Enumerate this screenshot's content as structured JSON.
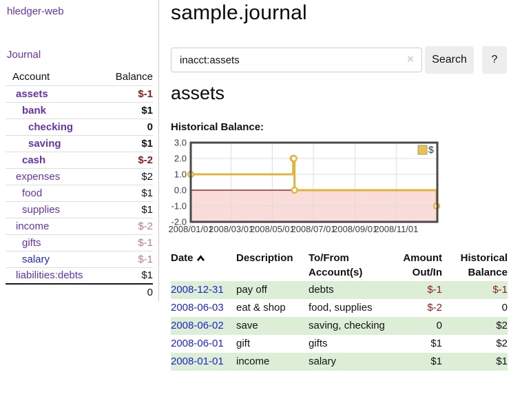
{
  "app": {
    "brand": "hledger-web"
  },
  "nav": {
    "journal": "Journal"
  },
  "sidebar": {
    "header": {
      "account": "Account",
      "balance": "Balance"
    },
    "accounts": [
      {
        "name": "assets",
        "balance": "$-1",
        "depth": 1,
        "bold": true,
        "balance_style": "strong-neg"
      },
      {
        "name": "bank",
        "balance": "$1",
        "depth": 2,
        "bold": true,
        "balance_style": "plain"
      },
      {
        "name": "checking",
        "balance": "0",
        "depth": 3,
        "bold": true,
        "balance_style": "plain"
      },
      {
        "name": "saving",
        "balance": "$1",
        "depth": 3,
        "bold": true,
        "balance_style": "plain"
      },
      {
        "name": "cash",
        "balance": "$-2",
        "depth": 2,
        "bold": true,
        "balance_style": "strong-neg"
      },
      {
        "name": "expenses",
        "balance": "$2",
        "depth": 1,
        "bold": false,
        "balance_style": "plain"
      },
      {
        "name": "food",
        "balance": "$1",
        "depth": 2,
        "bold": false,
        "balance_style": "plain"
      },
      {
        "name": "supplies",
        "balance": "$1",
        "depth": 2,
        "bold": false,
        "balance_style": "plain"
      },
      {
        "name": "income",
        "balance": "$-2",
        "depth": 1,
        "bold": false,
        "balance_style": "soft-neg"
      },
      {
        "name": "gifts",
        "balance": "$-1",
        "depth": 2,
        "bold": false,
        "balance_style": "soft-neg"
      },
      {
        "name": "salary",
        "balance": "$-1",
        "depth": 2,
        "bold": false,
        "balance_style": "soft-neg",
        "link": "blue"
      },
      {
        "name": "liabilities:debts",
        "balance": "$1",
        "depth": 1,
        "bold": false,
        "balance_style": "plain"
      }
    ],
    "total": "0"
  },
  "main": {
    "title": "sample.journal",
    "search": {
      "value": "inacct:assets",
      "clear_icon": "×",
      "button_label": "Search",
      "help_label": "?"
    },
    "account_title": "assets",
    "chart_label": "Historical Balance:"
  },
  "chart_data": {
    "type": "line",
    "style": "step-after",
    "title": "Historical Balance:",
    "series": [
      {
        "name": "$",
        "x": [
          "2008-01-01",
          "2008-06-01",
          "2008-06-02",
          "2008-06-03",
          "2008-12-31"
        ],
        "values": [
          1,
          2,
          2,
          0,
          -1
        ]
      }
    ],
    "x_range": [
      "2008-01-01",
      "2009-01-01"
    ],
    "x_ticks": [
      {
        "label": "2008/01/01",
        "date": "2008-01-01"
      },
      {
        "label": "2008/03/01",
        "date": "2008-03-01"
      },
      {
        "label": "2008/05/01",
        "date": "2008-05-01"
      },
      {
        "label": "2008/07/01",
        "date": "2008-07-01"
      },
      {
        "label": "2008/09/01",
        "date": "2008-09-01"
      },
      {
        "label": "2008/11/01",
        "date": "2008-11-01"
      }
    ],
    "y_ticks": [
      3.0,
      2.0,
      1.0,
      0.0,
      -1.0,
      -2.0
    ],
    "ylim": [
      -2,
      3
    ],
    "legend": {
      "label": "$",
      "position": "top-right"
    },
    "grid": true,
    "colors": {
      "line": "#e0b43e",
      "marker_fill": "#ffffff",
      "negative_region_fill": "#fadcdb",
      "zero_line": "#8b0000",
      "frame": "#4a4a4a",
      "gridline": "#dddddd",
      "legend_fill": "#eac24b",
      "legend_border": "#999999",
      "axis_text": "#3a3a3a"
    }
  },
  "register": {
    "columns": [
      {
        "label": "Date",
        "sort": "ascending"
      },
      {
        "label": "Description"
      },
      {
        "label": "To/From Account(s)"
      },
      {
        "label": "Amount Out/In"
      },
      {
        "label": "Historical Balance"
      }
    ],
    "rows": [
      {
        "date": "2008-12-31",
        "description": "pay off",
        "accounts": "debts",
        "amount": "$-1",
        "amount_neg": true,
        "balance": "$-1",
        "balance_neg": true
      },
      {
        "date": "2008-06-03",
        "description": "eat & shop",
        "accounts": "food, supplies",
        "amount": "$-2",
        "amount_neg": true,
        "balance": "0",
        "balance_neg": false
      },
      {
        "date": "2008-06-02",
        "description": "save",
        "accounts": "saving, checking",
        "amount": "0",
        "amount_neg": false,
        "balance": "$2",
        "balance_neg": false
      },
      {
        "date": "2008-06-01",
        "description": "gift",
        "accounts": "gifts",
        "amount": "$1",
        "amount_neg": false,
        "balance": "$2",
        "balance_neg": false
      },
      {
        "date": "2008-01-01",
        "description": "income",
        "accounts": "salary",
        "amount": "$1",
        "amount_neg": false,
        "balance": "$1",
        "balance_neg": false
      }
    ]
  },
  "colors": {
    "accent_purple": "#6633aa",
    "link_blue": "#2222cc",
    "negative_strong": "#8b1a1a",
    "negative_soft": "#bf7a80",
    "row_green": "#ddeed7"
  }
}
